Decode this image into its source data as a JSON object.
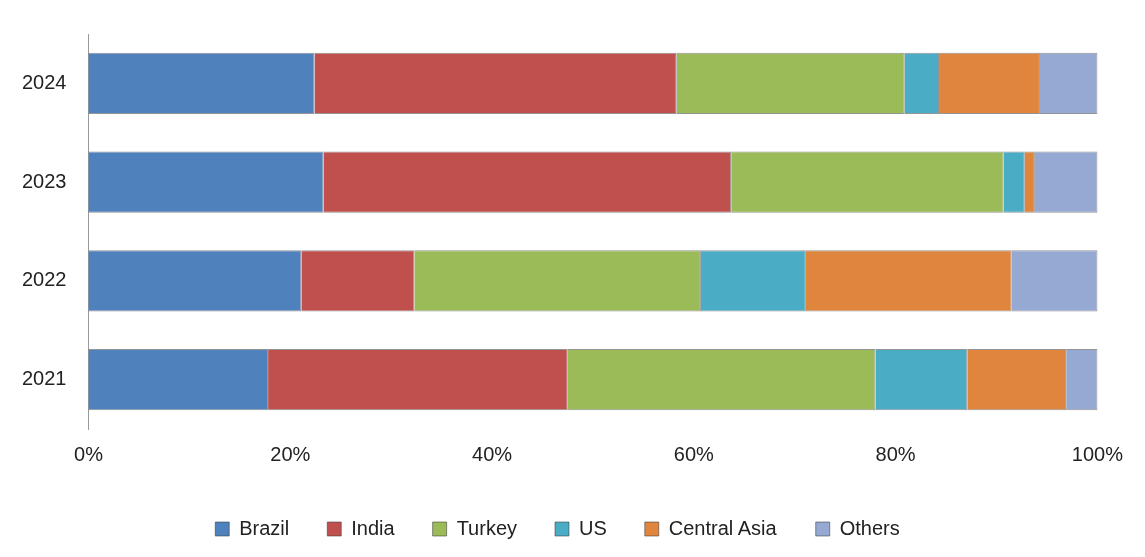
{
  "chart_data": {
    "type": "bar",
    "orientation": "horizontal",
    "stacked": true,
    "categories": [
      "2024",
      "2023",
      "2022",
      "2021"
    ],
    "series": [
      {
        "name": "Brazil",
        "color": "#4f81bd",
        "values": [
          22.4,
          23.3,
          21.1,
          17.8
        ]
      },
      {
        "name": "India",
        "color": "#c0504d",
        "values": [
          35.9,
          40.4,
          11.2,
          29.7
        ]
      },
      {
        "name": "Turkey",
        "color": "#9bbb59",
        "values": [
          22.6,
          27.0,
          28.4,
          30.5
        ]
      },
      {
        "name": "US",
        "color": "#4bacc6",
        "values": [
          3.4,
          2.1,
          10.4,
          9.1
        ]
      },
      {
        "name": "Central Asia",
        "color": "#e0853d",
        "values": [
          10.0,
          1.0,
          20.4,
          9.8
        ]
      },
      {
        "name": "Others",
        "color": "#95a9d3",
        "values": [
          5.7,
          6.2,
          8.5,
          3.1
        ]
      }
    ],
    "xlim": [
      0,
      100
    ],
    "xticks": [
      {
        "value": 0,
        "label": "0%"
      },
      {
        "value": 20,
        "label": "20%"
      },
      {
        "value": 40,
        "label": "40%"
      },
      {
        "value": 60,
        "label": "60%"
      },
      {
        "value": 80,
        "label": "80%"
      },
      {
        "value": 100,
        "label": "100%"
      }
    ],
    "grid": false,
    "legend": "bottom"
  }
}
